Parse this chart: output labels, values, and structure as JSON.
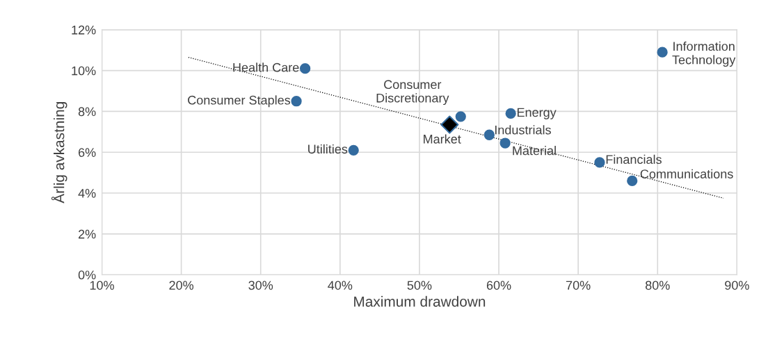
{
  "chart_data": {
    "type": "scatter",
    "xlabel": "Maximum drawdown",
    "ylabel": "Årlig avkastning",
    "xlim": [
      10,
      90
    ],
    "ylim": [
      0,
      12
    ],
    "xticks": [
      {
        "value": 10,
        "label": "10%"
      },
      {
        "value": 20,
        "label": "20%"
      },
      {
        "value": 30,
        "label": "30%"
      },
      {
        "value": 40,
        "label": "40%"
      },
      {
        "value": 50,
        "label": "50%"
      },
      {
        "value": 60,
        "label": "60%"
      },
      {
        "value": 70,
        "label": "70%"
      },
      {
        "value": 80,
        "label": "80%"
      },
      {
        "value": 90,
        "label": "90%"
      }
    ],
    "yticks": [
      {
        "value": 0,
        "label": "0%"
      },
      {
        "value": 2,
        "label": "2%"
      },
      {
        "value": 4,
        "label": "4%"
      },
      {
        "value": 6,
        "label": "6%"
      },
      {
        "value": 8,
        "label": "8%"
      },
      {
        "value": 10,
        "label": "10%"
      },
      {
        "value": 12,
        "label": "12%"
      }
    ],
    "grid": true,
    "legend": false,
    "series": [
      {
        "marker": "circle",
        "color": "#336b9f",
        "x": [
          35.6,
          34.5,
          41.7,
          55.2,
          61.5,
          58.8,
          60.8,
          72.7,
          76.8,
          80.6
        ],
        "values": [
          10.1,
          8.5,
          6.1,
          7.75,
          7.9,
          6.85,
          6.45,
          5.5,
          4.6,
          10.9
        ],
        "value_labels": [
          "Health Care",
          "Consumer Staples",
          "Utilities",
          "Consumer\nDiscretionary",
          "Energy",
          "Industrials",
          "Material",
          "Financials",
          "Communications",
          "Information\nTechnology"
        ]
      },
      {
        "marker": "diamond",
        "color": "#000000",
        "x": [
          53.8
        ],
        "values": [
          7.35
        ],
        "value_labels": [
          "Market"
        ]
      },
      {
        "type": "line",
        "line_style": "dotted",
        "color": "#000000",
        "marker": "none",
        "x": [
          20.9,
          88.3
        ],
        "values": [
          10.65,
          3.75
        ]
      }
    ]
  }
}
